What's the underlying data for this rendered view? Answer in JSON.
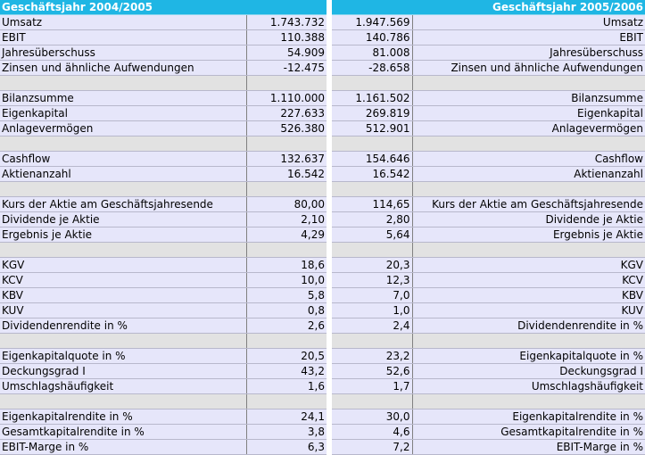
{
  "header_left": "Geschäftsjahr 2004/2005",
  "header_right": "Geschäftsjahr 2005/2006",
  "rows": [
    {
      "type": "data",
      "label": "Umsatz",
      "v2005": "1.743.732",
      "v2006": "1.947.569"
    },
    {
      "type": "data",
      "label": "EBIT",
      "v2005": "110.388",
      "v2006": "140.786"
    },
    {
      "type": "data",
      "label": "Jahresüberschuss",
      "v2005": "54.909",
      "v2006": "81.008"
    },
    {
      "type": "data",
      "label": "Zinsen und ähnliche Aufwendungen",
      "v2005": "-12.475",
      "v2006": "-28.658"
    },
    {
      "type": "spacer"
    },
    {
      "type": "data",
      "label": "Bilanzsumme",
      "v2005": "1.110.000",
      "v2006": "1.161.502"
    },
    {
      "type": "data",
      "label": "Eigenkapital",
      "v2005": "227.633",
      "v2006": "269.819"
    },
    {
      "type": "data",
      "label": "Anlagevermögen",
      "v2005": "526.380",
      "v2006": "512.901"
    },
    {
      "type": "spacer"
    },
    {
      "type": "data",
      "label": "Cashflow",
      "v2005": "132.637",
      "v2006": "154.646"
    },
    {
      "type": "data",
      "label": "Aktienanzahl",
      "v2005": "16.542",
      "v2006": "16.542"
    },
    {
      "type": "spacer"
    },
    {
      "type": "data",
      "label": "Kurs der Aktie am Geschäftsjahresende",
      "v2005": "80,00",
      "v2006": "114,65"
    },
    {
      "type": "data",
      "label": "Dividende je Aktie",
      "v2005": "2,10",
      "v2006": "2,80"
    },
    {
      "type": "data",
      "label": "Ergebnis je Aktie",
      "v2005": "4,29",
      "v2006": "5,64"
    },
    {
      "type": "spacer"
    },
    {
      "type": "data",
      "label": "KGV",
      "v2005": "18,6",
      "v2006": "20,3"
    },
    {
      "type": "data",
      "label": "KCV",
      "v2005": "10,0",
      "v2006": "12,3"
    },
    {
      "type": "data",
      "label": "KBV",
      "v2005": "5,8",
      "v2006": "7,0"
    },
    {
      "type": "data",
      "label": "KUV",
      "v2005": "0,8",
      "v2006": "1,0"
    },
    {
      "type": "data",
      "label": "Dividendenrendite in %",
      "v2005": "2,6",
      "v2006": "2,4"
    },
    {
      "type": "spacer"
    },
    {
      "type": "data",
      "label": "Eigenkapitalquote in %",
      "v2005": "20,5",
      "v2006": "23,2"
    },
    {
      "type": "data",
      "label": "Deckungsgrad I",
      "v2005": "43,2",
      "v2006": "52,6"
    },
    {
      "type": "data",
      "label": "Umschlagshäufigkeit",
      "v2005": "1,6",
      "v2006": "1,7"
    },
    {
      "type": "spacer"
    },
    {
      "type": "data",
      "label": "Eigenkapitalrendite in %",
      "v2005": "24,1",
      "v2006": "30,0"
    },
    {
      "type": "data",
      "label": "Gesamtkapitalrendite in %",
      "v2005": "3,8",
      "v2006": "4,6"
    },
    {
      "type": "data",
      "label": "EBIT-Marge in %",
      "v2005": "6,3",
      "v2006": "7,2"
    }
  ]
}
